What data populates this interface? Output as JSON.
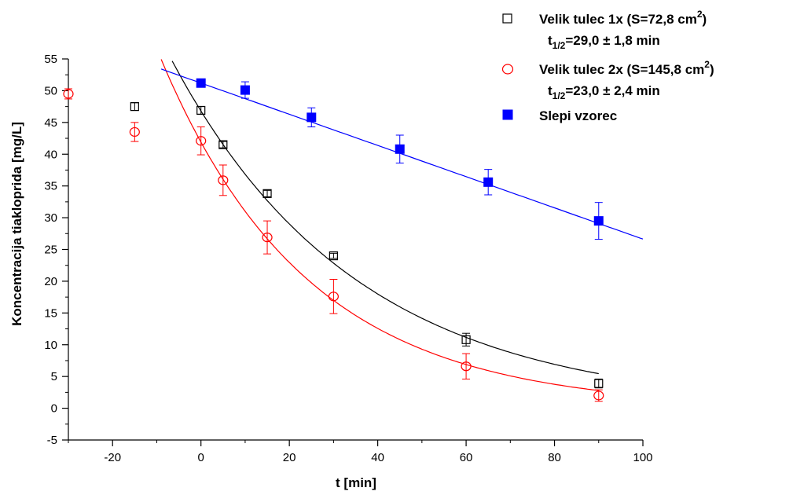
{
  "chart_data": {
    "type": "scatter",
    "xlabel": "t [min]",
    "ylabel": "Koncentracija tiakloprida [mg/L]",
    "xlim": [
      -30,
      100
    ],
    "ylim": [
      -5,
      55
    ],
    "x_ticks": [
      -20,
      0,
      20,
      40,
      60,
      80,
      100
    ],
    "y_ticks": [
      -5,
      0,
      5,
      10,
      15,
      20,
      25,
      30,
      35,
      40,
      45,
      50,
      55
    ],
    "x_tick_labels": [
      "-20",
      "0",
      "20",
      "40",
      "60",
      "80",
      "100"
    ],
    "y_tick_labels": [
      "-5",
      "0",
      "5",
      "10",
      "15",
      "20",
      "25",
      "30",
      "35",
      "40",
      "45",
      "50",
      "55"
    ],
    "legend_position": "top-right",
    "series": [
      {
        "name": "Velik tulec 1x (S=72,8 cm²)",
        "legend_main": "Velik tulec 1x (S=72,8 cm",
        "legend_sup": "2",
        "legend_close": ")",
        "half_life_prefix": "t",
        "half_life_sub": "1/2",
        "half_life_value": "=29,0 ± 1,8 min",
        "marker": "open-square",
        "color": "#000000",
        "points": [
          {
            "x": -15,
            "y": 47.5,
            "err": 0.6
          },
          {
            "x": 0,
            "y": 46.9,
            "err": 0.6
          },
          {
            "x": 5,
            "y": 41.5,
            "err": 0.5
          },
          {
            "x": 15,
            "y": 33.8,
            "err": 0.5
          },
          {
            "x": 30,
            "y": 24.0,
            "err": 0.4
          },
          {
            "x": 60,
            "y": 10.8,
            "err": 1.0
          },
          {
            "x": 90,
            "y": 3.9,
            "err": 0.7
          }
        ],
        "fit": {
          "type": "exponential",
          "A": 46.8,
          "k": 0.0239,
          "x_from": -8,
          "x_to": 90
        }
      },
      {
        "name": "Velik tulec 2x (S=145,8 cm²)",
        "legend_main": "Velik tulec 2x (S=145,8 cm",
        "legend_sup": "2",
        "legend_close": ")",
        "half_life_prefix": "t",
        "half_life_sub": "1/2",
        "half_life_value": "=23,0 ± 2,4 min",
        "marker": "open-circle",
        "color": "#ff0000",
        "points": [
          {
            "x": -30,
            "y": 49.5,
            "err": 0.8
          },
          {
            "x": -15,
            "y": 43.5,
            "err": 1.5
          },
          {
            "x": 0,
            "y": 42.1,
            "err": 2.2
          },
          {
            "x": 5,
            "y": 35.9,
            "err": 2.4
          },
          {
            "x": 15,
            "y": 26.9,
            "err": 2.6
          },
          {
            "x": 30,
            "y": 17.6,
            "err": 2.7
          },
          {
            "x": 60,
            "y": 6.6,
            "err": 2.0
          },
          {
            "x": 90,
            "y": 2.0,
            "err": 0.9
          }
        ],
        "fit": {
          "type": "exponential",
          "A": 41.9,
          "k": 0.0301,
          "x_from": -9,
          "x_to": 90
        }
      },
      {
        "name": "Slepi vzorec",
        "legend_main": "Slepi vzorec",
        "marker": "filled-square",
        "color": "#0000ff",
        "points": [
          {
            "x": 0,
            "y": 51.2,
            "err": 0.5
          },
          {
            "x": 10,
            "y": 50.1,
            "err": 1.3
          },
          {
            "x": 25,
            "y": 45.8,
            "err": 1.5
          },
          {
            "x": 45,
            "y": 40.8,
            "err": 2.2
          },
          {
            "x": 65,
            "y": 35.6,
            "err": 2.0
          },
          {
            "x": 90,
            "y": 29.5,
            "err": 2.9
          }
        ],
        "fit": {
          "type": "linear",
          "a": 51.2,
          "b": -0.2456,
          "x_from": -9,
          "x_to": 100
        }
      }
    ]
  }
}
